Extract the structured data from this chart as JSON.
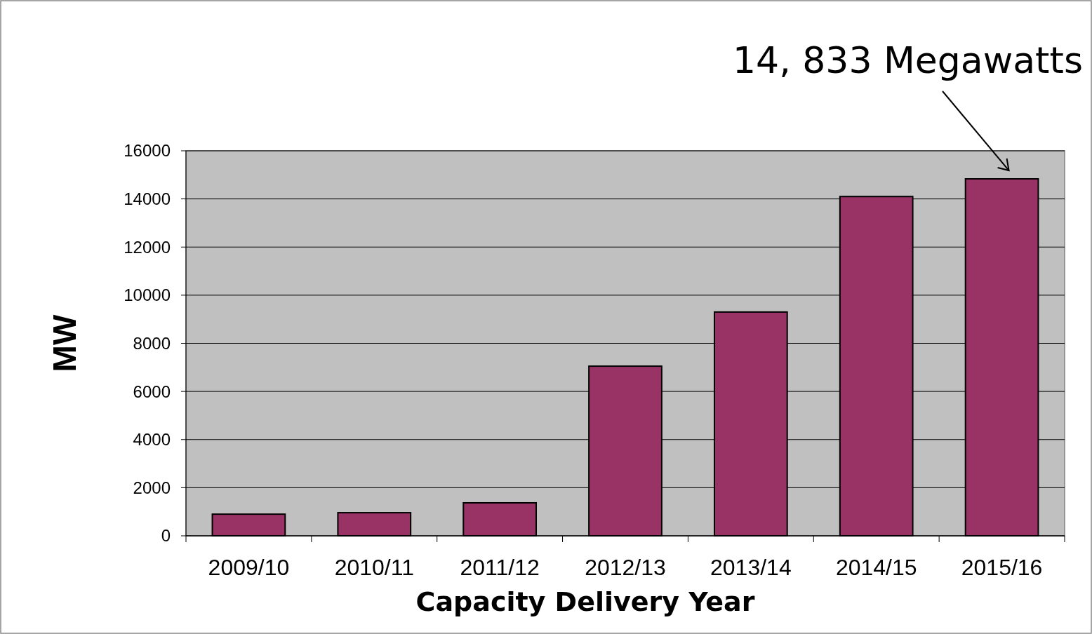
{
  "chart_data": {
    "type": "bar",
    "xlabel": "Capacity Delivery Year",
    "ylabel": "MW",
    "categories": [
      "2009/10",
      "2010/11",
      "2011/12",
      "2012/13",
      "2013/14",
      "2014/15",
      "2015/16"
    ],
    "values": [
      900,
      960,
      1370,
      7050,
      9300,
      14100,
      14833
    ],
    "color": "#993366",
    "ylim": [
      0,
      16000
    ],
    "yticks": [
      0,
      2000,
      4000,
      6000,
      8000,
      10000,
      12000,
      14000,
      16000
    ],
    "grid": "y",
    "annotations": [
      {
        "text": "14, 833 Megawatts",
        "x": "2015/16",
        "y": 14833
      }
    ]
  }
}
